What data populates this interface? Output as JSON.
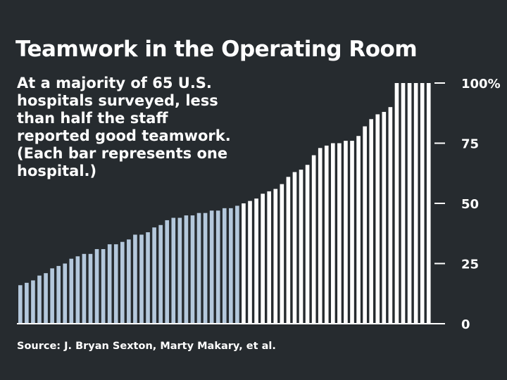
{
  "chart_data": {
    "type": "bar",
    "title": "Teamwork in the Operating Room",
    "subtitle": "At a majority of 65 U.S.\nhospitals surveyed, less\nthan half the staff\nreported good teamwork.\n(Each bar represents one\nhospital.)",
    "source": "Source:  J. Bryan Sexton, Marty Makary, et al.",
    "xlabel": "",
    "ylabel": "",
    "ylim": [
      0,
      100
    ],
    "yticks": [
      0,
      25,
      50,
      75,
      100
    ],
    "ytick_labels": [
      "0",
      "25",
      "50",
      "75",
      "100%"
    ],
    "axis_side": "right",
    "grid": false,
    "colors": {
      "below_half": "#b4c8dc",
      "at_or_above_half": "#ffffff",
      "background": "#262b2f"
    },
    "values": [
      16,
      17,
      18,
      20,
      21,
      23,
      24,
      25,
      27,
      28,
      29,
      29,
      31,
      31,
      33,
      33,
      34,
      35,
      37,
      37,
      38,
      40,
      41,
      43,
      44,
      44,
      45,
      45,
      46,
      46,
      47,
      47,
      48,
      48,
      49,
      50,
      51,
      52,
      54,
      55,
      56,
      58,
      61,
      63,
      64,
      66,
      70,
      73,
      74,
      75,
      75,
      76,
      76,
      78,
      82,
      85,
      87,
      88,
      90,
      100,
      100,
      100,
      100,
      100,
      100
    ]
  }
}
